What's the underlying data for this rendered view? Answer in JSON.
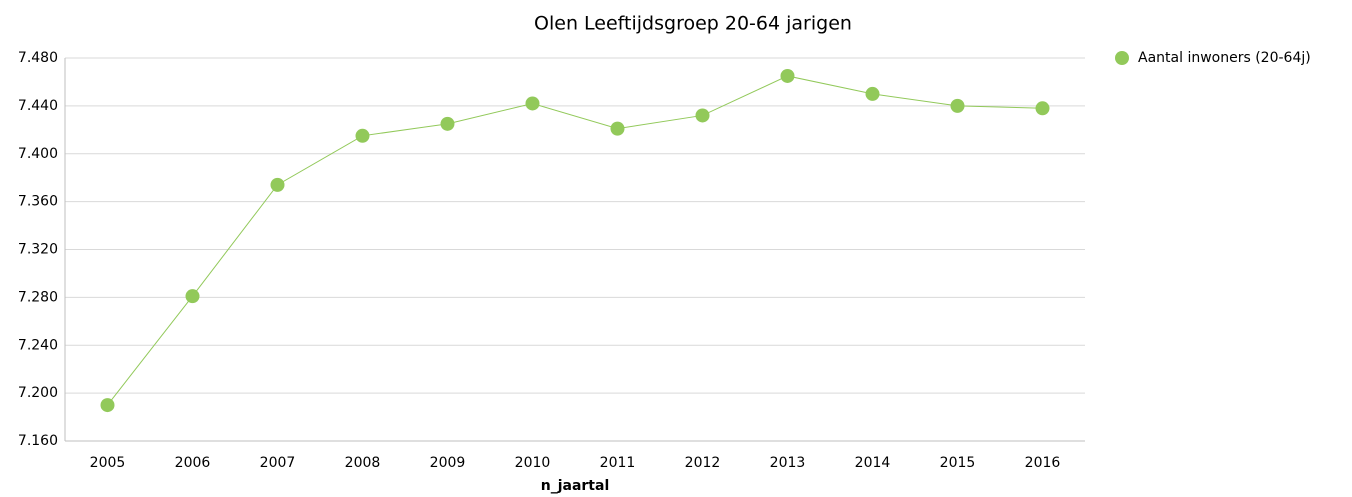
{
  "chart_data": {
    "type": "line",
    "title": "Olen  Leeftijdsgroep 20-64 jarigen",
    "x_label": "n_jaartal",
    "categories": [
      "2005",
      "2006",
      "2007",
      "2008",
      "2009",
      "2010",
      "2011",
      "2012",
      "2013",
      "2014",
      "2015",
      "2016"
    ],
    "series": [
      {
        "name": "Aantal inwoners  (20-64j)",
        "color": "#92c95a",
        "values": [
          7190,
          7281,
          7374,
          7415,
          7425,
          7442,
          7421,
          7432,
          7465,
          7450,
          7440,
          7438
        ]
      }
    ],
    "ylim": [
      7160,
      7480
    ],
    "yticks": [
      {
        "value": 7160,
        "label": "7.160"
      },
      {
        "value": 7200,
        "label": "7.200"
      },
      {
        "value": 7240,
        "label": "7.240"
      },
      {
        "value": 7280,
        "label": "7.280"
      },
      {
        "value": 7320,
        "label": "7.320"
      },
      {
        "value": 7360,
        "label": "7.360"
      },
      {
        "value": 7400,
        "label": "7.400"
      },
      {
        "value": 7440,
        "label": "7.440"
      },
      {
        "value": 7480,
        "label": "7.480"
      }
    ],
    "grid": true,
    "legend": "right"
  }
}
